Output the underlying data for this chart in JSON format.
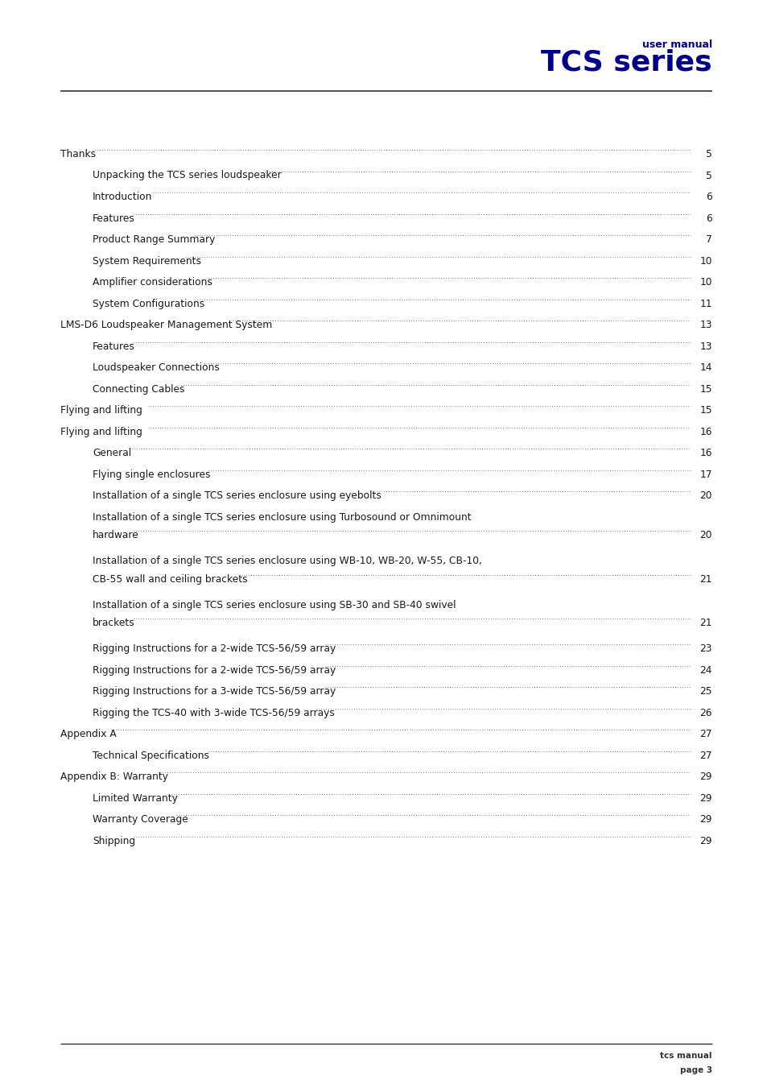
{
  "bg_color": "#ffffff",
  "header_text_small": "user manual",
  "header_text_large": "TCS series",
  "header_color": "#00008B",
  "toc_entries": [
    {
      "text": "Thanks",
      "page": "5",
      "indent": 0,
      "multiline": false
    },
    {
      "text": "Unpacking the TCS series loudspeaker",
      "page": "5",
      "indent": 1,
      "multiline": false
    },
    {
      "text": "Introduction",
      "page": "6",
      "indent": 1,
      "multiline": false
    },
    {
      "text": "Features",
      "page": "6",
      "indent": 1,
      "multiline": false
    },
    {
      "text": "Product Range Summary",
      "page": "7",
      "indent": 1,
      "multiline": false
    },
    {
      "text": "System Requirements",
      "page": "10",
      "indent": 1,
      "multiline": false
    },
    {
      "text": "Amplifier considerations",
      "page": "10",
      "indent": 1,
      "multiline": false
    },
    {
      "text": "System Configurations",
      "page": "11",
      "indent": 1,
      "multiline": false
    },
    {
      "text": "LMS-D6 Loudspeaker Management System",
      "page": "13",
      "indent": 0,
      "multiline": false
    },
    {
      "text": "Features",
      "page": "13",
      "indent": 1,
      "multiline": false
    },
    {
      "text": "Loudspeaker Connections",
      "page": "14",
      "indent": 1,
      "multiline": false
    },
    {
      "text": "Connecting Cables",
      "page": "15",
      "indent": 1,
      "multiline": false
    },
    {
      "text": "Flying and lifting",
      "page": "15",
      "indent": 0,
      "multiline": false
    },
    {
      "text": "Flying and lifting",
      "page": "16",
      "indent": 0,
      "multiline": false
    },
    {
      "text": "General",
      "page": "16",
      "indent": 1,
      "multiline": false
    },
    {
      "text": "Flying single enclosures",
      "page": "17",
      "indent": 1,
      "multiline": false
    },
    {
      "text": "Installation of a single TCS series enclosure using eyebolts",
      "page": "20",
      "indent": 1,
      "multiline": false
    },
    {
      "text": "Installation of a single TCS series enclosure using Turbosound or Omnimount",
      "text2": "hardware",
      "page": "20",
      "indent": 1,
      "multiline": true
    },
    {
      "text": "Installation of a single TCS series enclosure using WB-10, WB-20, W-55, CB-10,",
      "text2": "CB-55 wall and ceiling brackets",
      "page": "21",
      "indent": 1,
      "multiline": true
    },
    {
      "text": "Installation of a single TCS series enclosure using SB-30 and SB-40 swivel",
      "text2": "brackets",
      "page": "21",
      "indent": 1,
      "multiline": true
    },
    {
      "text": "Rigging Instructions for a 2-wide TCS-56/59 array",
      "page": "23",
      "indent": 1,
      "multiline": false
    },
    {
      "text": "Rigging Instructions for a 2-wide TCS-56/59 array",
      "page": "24",
      "indent": 1,
      "multiline": false
    },
    {
      "text": "Rigging Instructions for a 3-wide TCS-56/59 array",
      "page": "25",
      "indent": 1,
      "multiline": false
    },
    {
      "text": "Rigging the TCS-40 with 3-wide TCS-56/59 arrays",
      "page": "26",
      "indent": 1,
      "multiline": false
    },
    {
      "text": "Appendix A",
      "page": "27",
      "indent": 0,
      "multiline": false
    },
    {
      "text": "Technical Specifications",
      "page": "27",
      "indent": 1,
      "multiline": false
    },
    {
      "text": "Appendix B: Warranty",
      "page": "29",
      "indent": 0,
      "multiline": false
    },
    {
      "text": "Limited Warranty",
      "page": "29",
      "indent": 1,
      "multiline": false
    },
    {
      "text": "Warranty Coverage",
      "page": "29",
      "indent": 1,
      "multiline": false
    },
    {
      "text": "Shipping",
      "page": "29",
      "indent": 1,
      "multiline": false
    }
  ],
  "footer_line1": "tcs manual",
  "footer_line2": "page 3",
  "font_color": "#1a1a1a",
  "dot_color": "#555555"
}
